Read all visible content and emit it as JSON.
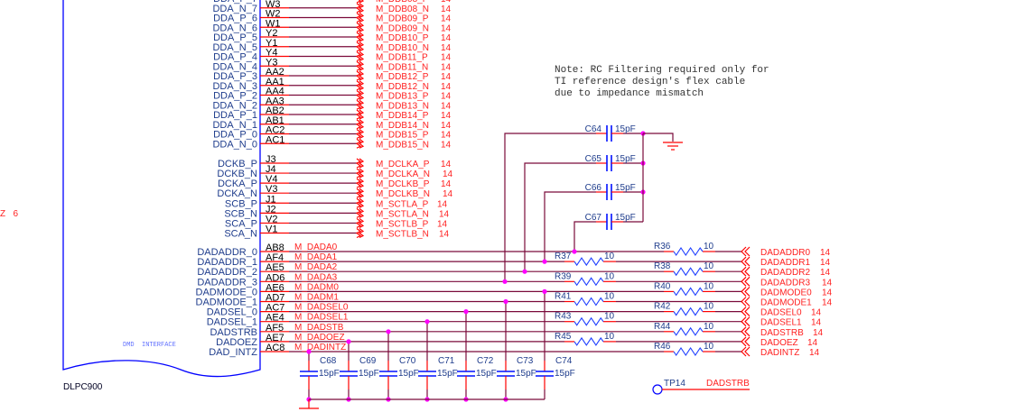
{
  "chip": {
    "part": "DLPC900",
    "block_label": "DMD  INTERFACE",
    "offpage_fragment": "Z   6"
  },
  "note": [
    "Note: RC Filtering required only for",
    "TI reference design's flex cable",
    "due to impedance mismatch"
  ],
  "page_ref": "14",
  "dda_rows": [
    {
      "pin_name": "DDA_P_7",
      "pin": "",
      "net": "M_DDB08_P"
    },
    {
      "pin_name": "DDA_N_7",
      "pin": "W3",
      "net": "M_DDB08_N"
    },
    {
      "pin_name": "DDA_P_6",
      "pin": "W2",
      "net": "M_DDB09_P"
    },
    {
      "pin_name": "DDA_N_6",
      "pin": "W1",
      "net": "M_DDB09_N"
    },
    {
      "pin_name": "DDA_P_5",
      "pin": "Y2",
      "net": "M_DDB10_P"
    },
    {
      "pin_name": "DDA_N_5",
      "pin": "Y1",
      "net": "M_DDB10_N"
    },
    {
      "pin_name": "DDA_P_4",
      "pin": "Y4",
      "net": "M_DDB11_P"
    },
    {
      "pin_name": "DDA_N_4",
      "pin": "Y3",
      "net": "M_DDB11_N"
    },
    {
      "pin_name": "DDA_P_3",
      "pin": "AA2",
      "net": "M_DDB12_P"
    },
    {
      "pin_name": "DDA_N_3",
      "pin": "AA1",
      "net": "M_DDB12_N"
    },
    {
      "pin_name": "DDA_P_2",
      "pin": "AA4",
      "net": "M_DDB13_P"
    },
    {
      "pin_name": "DDA_N_2",
      "pin": "AA3",
      "net": "M_DDB13_N"
    },
    {
      "pin_name": "DDA_P_1",
      "pin": "AB2",
      "net": "M_DDB14_P"
    },
    {
      "pin_name": "DDA_N_1",
      "pin": "AB1",
      "net": "M_DDB14_N"
    },
    {
      "pin_name": "DDA_P_0",
      "pin": "AC2",
      "net": "M_DDB15_P"
    },
    {
      "pin_name": "DDA_N_0",
      "pin": "AC1",
      "net": "M_DDB15_N"
    }
  ],
  "clk_rows": [
    {
      "pin_name": "DCKB_P",
      "pin": "J3",
      "net": "M_DCLKA_P"
    },
    {
      "pin_name": "DCKB_N",
      "pin": "J4",
      "net": "M_DCLKA_N"
    },
    {
      "pin_name": "DCKA_P",
      "pin": "V4",
      "net": "M_DCLKB_P"
    },
    {
      "pin_name": "DCKA_N",
      "pin": "V3",
      "net": "M_DCLKB_N"
    },
    {
      "pin_name": "SCB_P",
      "pin": "J1",
      "net": "M_SCTLA_P"
    },
    {
      "pin_name": "SCB_N",
      "pin": "J2",
      "net": "M_SCTLA_N"
    },
    {
      "pin_name": "SCA_P",
      "pin": "V2",
      "net": "M_SCTLB_P"
    },
    {
      "pin_name": "SCA_N",
      "pin": "V1",
      "net": "M_SCTLB_N"
    }
  ],
  "dad_rows": [
    {
      "pin_name": "DADADDR_0",
      "pin": "AB8",
      "net": "M_DADA0",
      "res": "R36",
      "res_val": "10",
      "out": "DADADDR0"
    },
    {
      "pin_name": "DADADDR_1",
      "pin": "AF4",
      "net": "M_DADA1",
      "res": "R37",
      "res_val": "10",
      "out": "DADADDR1"
    },
    {
      "pin_name": "DADADDR_2",
      "pin": "AE5",
      "net": "M_DADA2",
      "res": "R38",
      "res_val": "10",
      "out": "DADADDR2"
    },
    {
      "pin_name": "DADADDR_3",
      "pin": "AD6",
      "net": "M_DADA3",
      "res": "R39",
      "res_val": "10",
      "out": "DADADDR3"
    },
    {
      "pin_name": "DADMODE_0",
      "pin": "AE6",
      "net": "M_DADM0",
      "res": "R40",
      "res_val": "10",
      "out": "DADMODE0"
    },
    {
      "pin_name": "DADMODE_1",
      "pin": "AD7",
      "net": "M_DADM1",
      "res": "R41",
      "res_val": "10",
      "out": "DADMODE1"
    },
    {
      "pin_name": "DADSEL_0",
      "pin": "AC7",
      "net": "M_DADSEL0",
      "res": "R42",
      "res_val": "10",
      "out": "DADSEL0"
    },
    {
      "pin_name": "DADSEL_1",
      "pin": "AE4",
      "net": "M_DADSEL1",
      "res": "R43",
      "res_val": "10",
      "out": "DADSEL1"
    },
    {
      "pin_name": "DADSTRB",
      "pin": "AF5",
      "net": "M_DADSTB",
      "res": "R44",
      "res_val": "10",
      "out": "DADSTRB"
    },
    {
      "pin_name": "DADOEZ",
      "pin": "AE7",
      "net": "M_DADOEZ",
      "res": "R45",
      "res_val": "10",
      "out": "DADOEZ"
    },
    {
      "pin_name": "DAD_INTZ",
      "pin": "AC8",
      "net": "M_DADINTZ",
      "res": "R46",
      "res_val": "10",
      "out": "DADINTZ"
    }
  ],
  "top_caps": [
    {
      "ref": "C64",
      "value": "15pF"
    },
    {
      "ref": "C65",
      "value": "15pF"
    },
    {
      "ref": "C66",
      "value": "15pF"
    },
    {
      "ref": "C67",
      "value": "15pF"
    }
  ],
  "bottom_caps": [
    {
      "ref": "C68",
      "value": "15pF"
    },
    {
      "ref": "C69",
      "value": "15pF"
    },
    {
      "ref": "C70",
      "value": "15pF"
    },
    {
      "ref": "C71",
      "value": "15pF"
    },
    {
      "ref": "C72",
      "value": "15pF"
    },
    {
      "ref": "C73",
      "value": "15pF"
    },
    {
      "ref": "C74",
      "value": "15pF"
    }
  ],
  "test_point": {
    "ref": "TP14",
    "net": "DADSTRB"
  },
  "colors": {
    "wire": "#7a0a3a",
    "pin_stub": "#ff0000",
    "chip": "#0000ff",
    "net_label": "#ff2020",
    "junction": "#ff00ff"
  }
}
